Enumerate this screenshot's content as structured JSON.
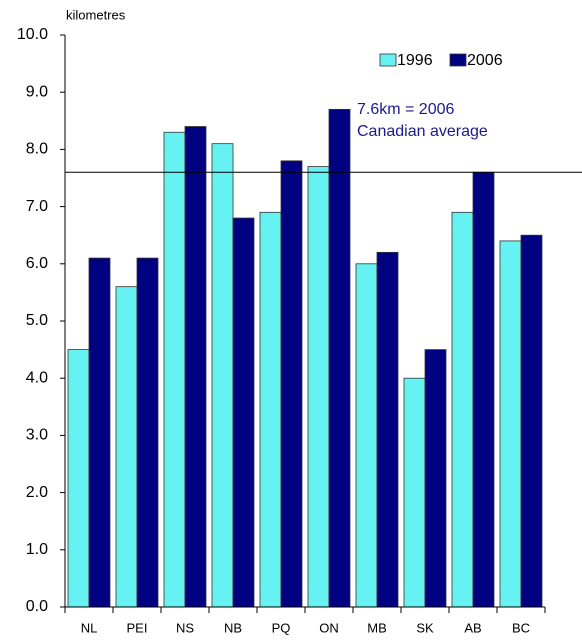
{
  "chart_data": {
    "type": "bar",
    "y_axis_label": "kilometres",
    "categories": [
      "NL",
      "PEI",
      "NS",
      "NB",
      "PQ",
      "ON",
      "MB",
      "SK",
      "AB",
      "BC"
    ],
    "series": [
      {
        "name": "1996",
        "color": "#66f2f2",
        "values": [
          4.5,
          5.6,
          8.3,
          8.1,
          6.9,
          7.7,
          6.0,
          4.0,
          6.9,
          6.4
        ]
      },
      {
        "name": "2006",
        "color": "#000080",
        "values": [
          6.1,
          6.1,
          8.4,
          6.8,
          7.8,
          8.7,
          6.2,
          4.5,
          7.6,
          6.5
        ]
      }
    ],
    "ylim": [
      0,
      10
    ],
    "yticks": [
      {
        "value": 0,
        "label": "0.0"
      },
      {
        "value": 1,
        "label": "1.0"
      },
      {
        "value": 2,
        "label": "2.0"
      },
      {
        "value": 3,
        "label": "3.0"
      },
      {
        "value": 4,
        "label": "4.0"
      },
      {
        "value": 5,
        "label": "5.0"
      },
      {
        "value": 6,
        "label": "6.0"
      },
      {
        "value": 7,
        "label": "7.0"
      },
      {
        "value": 8,
        "label": "8.0"
      },
      {
        "value": 9,
        "label": "9.0"
      },
      {
        "value": 10,
        "label": "10.0"
      }
    ],
    "reference_line": {
      "value": 7.6,
      "label": [
        "7.6km = 2006",
        "Canadian average"
      ]
    },
    "legend": "top-right",
    "grid": false
  }
}
